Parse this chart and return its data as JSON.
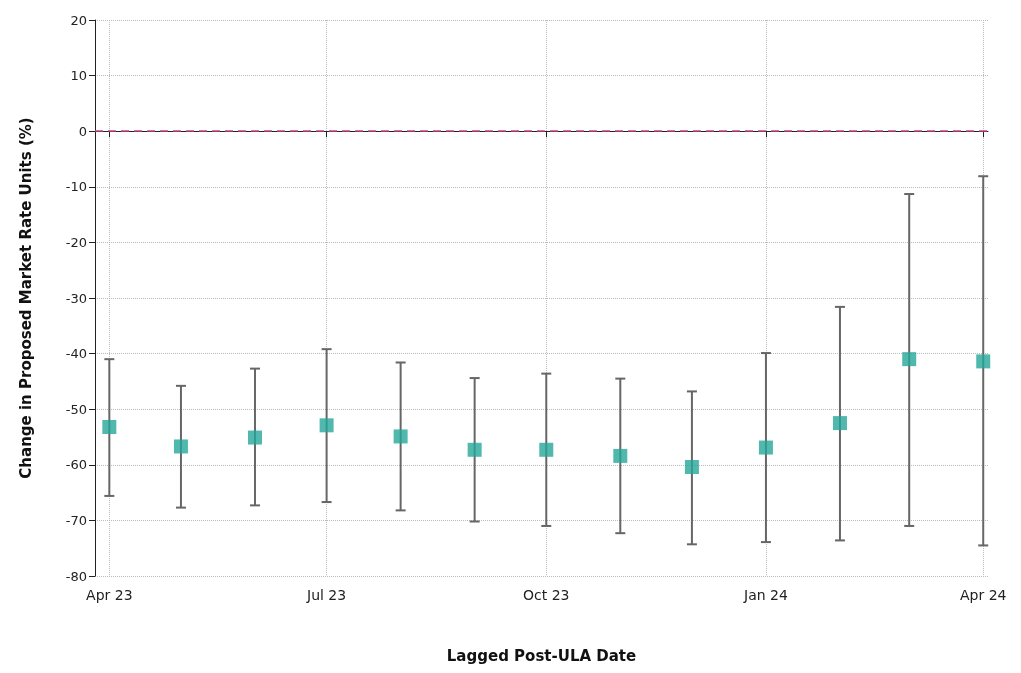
{
  "chart_data": {
    "type": "scatter",
    "xlabel": "Lagged Post-ULA Date",
    "ylabel": "Change in Proposed Market Rate Units (%)",
    "x": [
      "2023-04",
      "2023-05",
      "2023-06",
      "2023-07",
      "2023-08",
      "2023-09",
      "2023-10",
      "2023-11",
      "2023-12",
      "2024-01",
      "2024-02",
      "2024-03",
      "2024-04"
    ],
    "series": [
      {
        "color": "#26a69a",
        "values": [
          -53.2,
          -56.7,
          -55.1,
          -52.9,
          -54.9,
          -57.3,
          -57.3,
          -58.4,
          -60.4,
          -56.9,
          -52.5,
          -41.0,
          -41.4
        ],
        "errors": [
          [
            -65.6,
            -41.0
          ],
          [
            -67.7,
            -45.8
          ],
          [
            -67.3,
            -42.7
          ],
          [
            -66.7,
            -39.2
          ],
          [
            -68.2,
            -41.6
          ],
          [
            -70.2,
            -44.4
          ],
          [
            -71.0,
            -43.6
          ],
          [
            -72.3,
            -44.5
          ],
          [
            -74.3,
            -46.8
          ],
          [
            -73.9,
            -39.9
          ],
          [
            -73.6,
            -31.6
          ],
          [
            -71.0,
            -11.3
          ],
          [
            -74.5,
            -8.1
          ]
        ]
      }
    ],
    "xlim": [
      "2023-03-26",
      "2024-04-03"
    ],
    "xticks": [
      {
        "value": "2023-04",
        "label": "Apr 23"
      },
      {
        "value": "2023-07",
        "label": "Jul 23"
      },
      {
        "value": "2023-10",
        "label": "Oct 23"
      },
      {
        "value": "2024-01",
        "label": "Jan 24"
      },
      {
        "value": "2024-04",
        "label": "Apr 24"
      }
    ],
    "ylim": [
      -80,
      20
    ],
    "yticks": [
      -80,
      -70,
      -60,
      -50,
      -40,
      -30,
      -20,
      -10,
      0,
      10,
      20
    ],
    "ref_lines": [
      {
        "axis": "y",
        "value": 0,
        "color": "#c2457f",
        "line_style": "dashed"
      }
    ],
    "grid": true,
    "marker": "square"
  }
}
